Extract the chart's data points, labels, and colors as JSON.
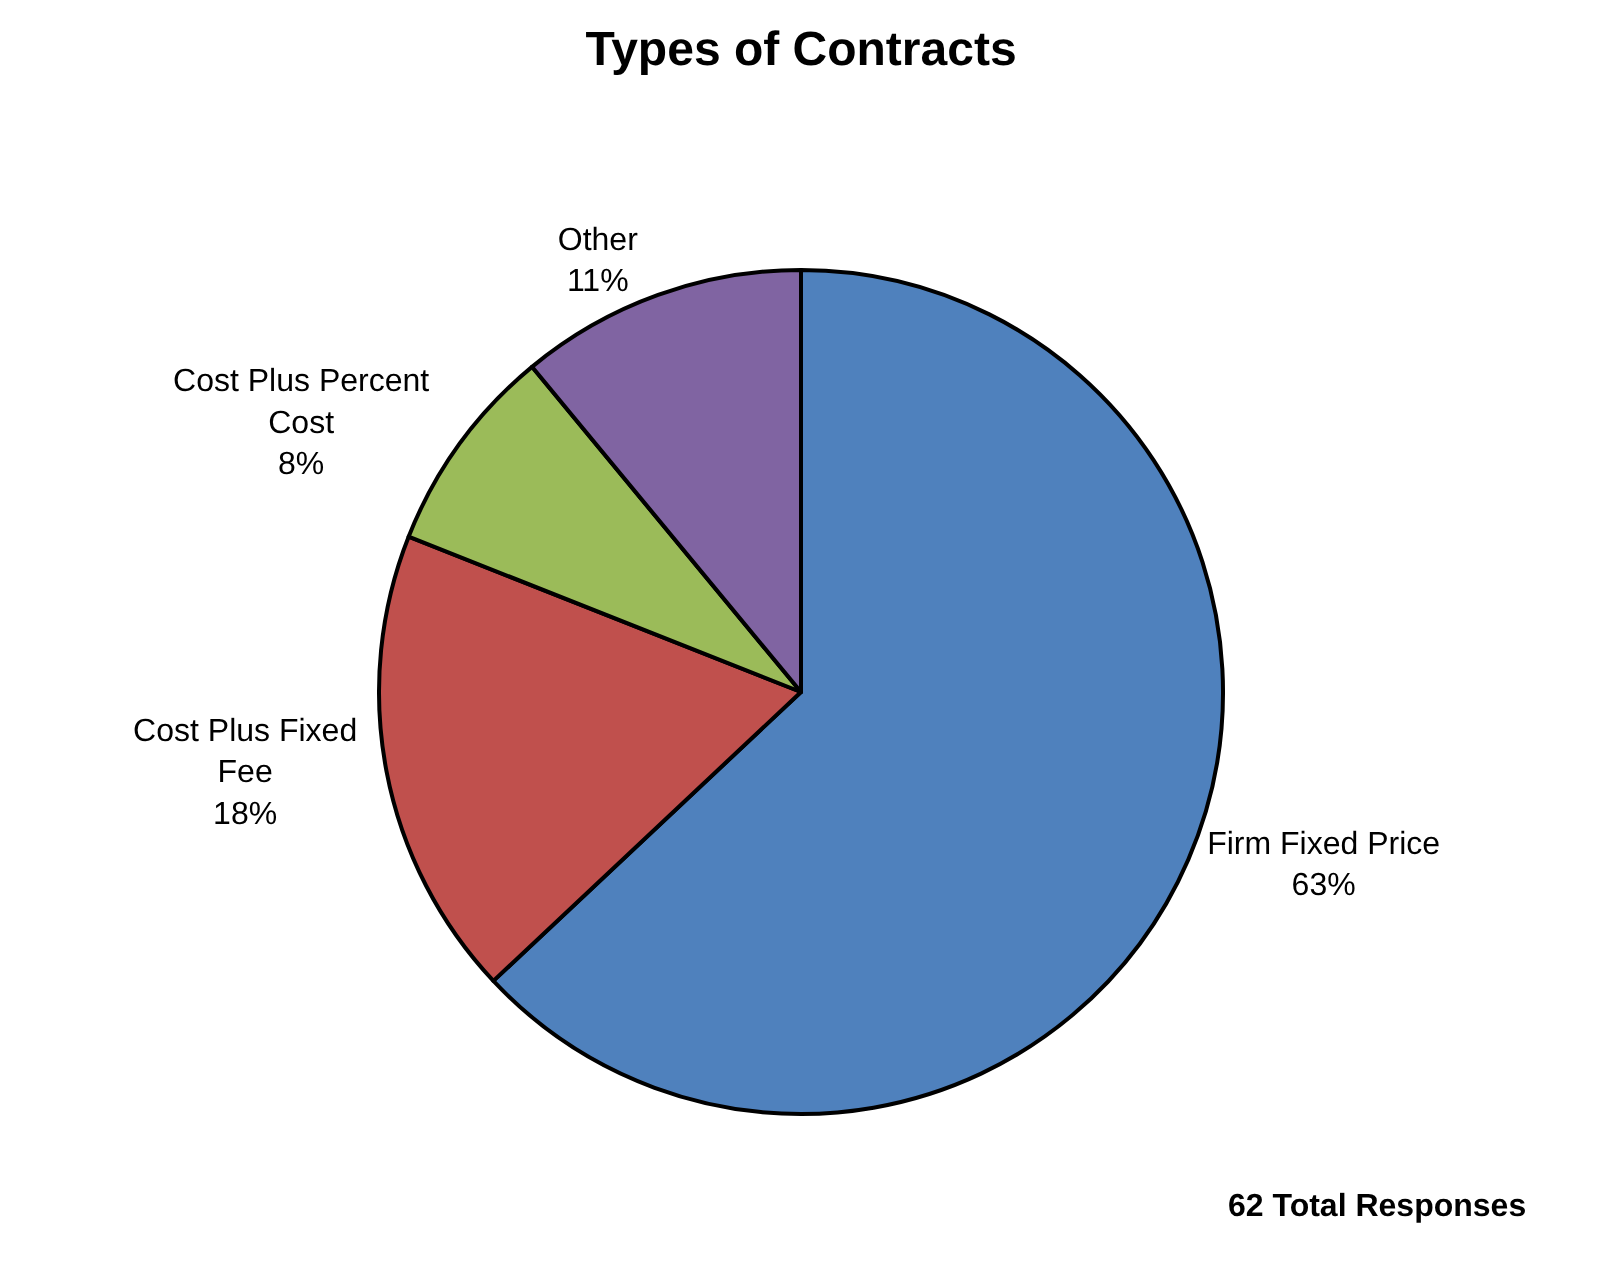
{
  "chart_data": {
    "type": "pie",
    "title": "Types of Contracts",
    "categories": [
      "Firm Fixed Price",
      "Cost Plus Fixed Fee",
      "Cost Plus Percent Cost",
      "Other"
    ],
    "values": [
      63,
      18,
      8,
      11
    ],
    "value_labels": [
      "63%",
      "18%",
      "8%",
      "11%"
    ],
    "colors": [
      "#4f81bd",
      "#c0504d",
      "#9bbb59",
      "#8064a2"
    ],
    "legend": false,
    "annotations": [
      "62 Total Responses"
    ]
  }
}
